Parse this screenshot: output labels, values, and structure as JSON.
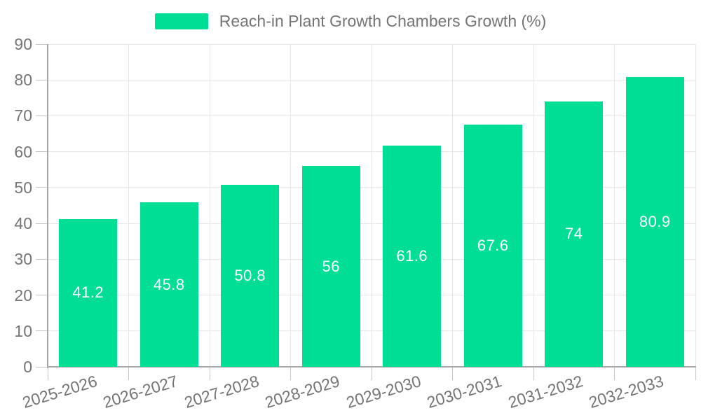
{
  "legend": {
    "label": "Reach-in Plant Growth Chambers Growth (%)"
  },
  "chart_data": {
    "type": "bar",
    "title": "Reach-in Plant Growth Chambers Growth (%)",
    "categories": [
      "2025-2026",
      "2026-2027",
      "2027-2028",
      "2028-2029",
      "2029-2030",
      "2030-2031",
      "2031-2032",
      "2032-2033"
    ],
    "values": [
      41.2,
      45.8,
      50.8,
      56,
      61.6,
      67.6,
      74,
      80.9
    ],
    "value_labels": [
      "41.2",
      "45.8",
      "50.8",
      "56",
      "61.6",
      "67.6",
      "74",
      "80.9"
    ],
    "xlabel": "",
    "ylabel": "",
    "ylim": [
      0,
      90
    ],
    "y_ticks": [
      0,
      10,
      20,
      30,
      40,
      50,
      60,
      70,
      80,
      90
    ],
    "grid": true,
    "legend_position": "top",
    "x_label_rotation_deg": -17,
    "value_label_position": "inside-center"
  },
  "colors": {
    "bar": "#00DE96",
    "grid": "#e7e7e7",
    "tick": "#c6c6c6",
    "axis": "#a6a6a6",
    "text": "#757575",
    "value_label": "#ffffff",
    "background": "#ffffff"
  }
}
